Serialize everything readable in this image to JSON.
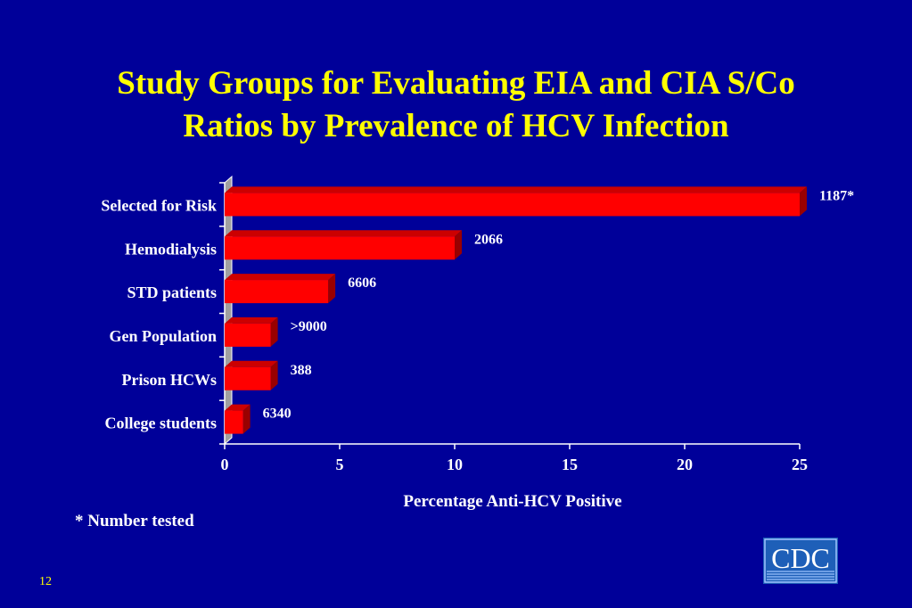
{
  "slide": {
    "title_line1": "Study Groups for Evaluating EIA and CIA S/Co",
    "title_line2": "Ratios by Prevalence of HCV Infection",
    "footnote": "* Number tested",
    "page_number": "12",
    "logo_text": "CDC"
  },
  "colors": {
    "background": "#000099",
    "title": "#FFFF00",
    "text": "#FFFFFF",
    "bar_front": "#FF0000",
    "bar_top": "#CC0000",
    "bar_side": "#990000",
    "wall": "#A0A0A0"
  },
  "chart_data": {
    "type": "bar",
    "orientation": "horizontal",
    "categories": [
      "Selected for Risk",
      "Hemodialysis",
      "STD patients",
      "Gen Population",
      "Prison HCWs",
      "College students"
    ],
    "values": [
      25,
      10,
      4.5,
      2,
      2,
      0.8
    ],
    "data_labels": [
      "1187*",
      "2066",
      "6606",
      ">9000",
      "388",
      "6340"
    ],
    "xlabel": "Percentage Anti-HCV Positive",
    "ylabel": "",
    "xlim": [
      0,
      25
    ],
    "xticks": [
      0,
      5,
      10,
      15,
      20,
      25
    ],
    "grid": false,
    "style": "3d"
  }
}
